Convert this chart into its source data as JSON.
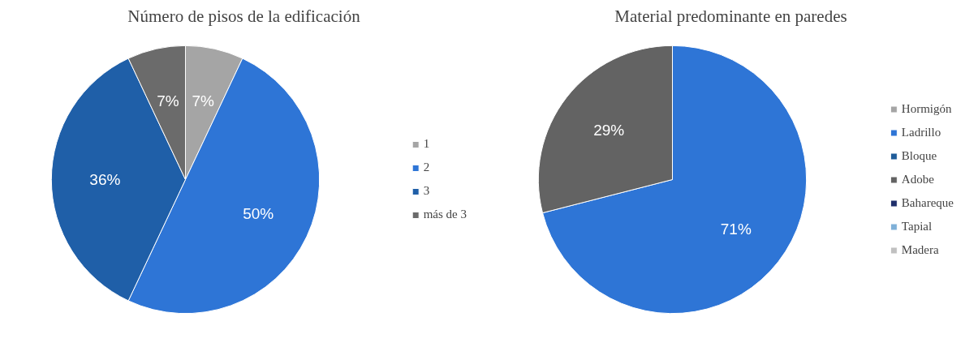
{
  "chart_data": [
    {
      "type": "pie",
      "title": "Número de pisos de la edificación",
      "categories": [
        "1",
        "2",
        "3",
        "más de 3"
      ],
      "values": [
        7,
        50,
        36,
        7
      ],
      "value_labels": [
        "7%",
        "50%",
        "36%",
        "7%"
      ],
      "colors": [
        "#a5a5a5",
        "#2e75d6",
        "#1f5fa8",
        "#6b6b6b"
      ],
      "legend": "right"
    },
    {
      "type": "pie",
      "title": "Material predominante en paredes",
      "categories": [
        "Hormigón",
        "Ladrillo",
        "Bloque",
        "Adobe",
        "Bahareque",
        "Tapial",
        "Madera"
      ],
      "values": [
        0,
        71,
        0,
        29,
        0,
        0,
        0
      ],
      "value_labels": [
        null,
        "71%",
        null,
        "29%",
        null,
        null,
        null
      ],
      "colors": [
        "#a5a5a5",
        "#2e75d6",
        "#1f5c99",
        "#636363",
        "#1f2f6b",
        "#7fb0d8",
        "#c0c0c0"
      ],
      "legend": "right"
    }
  ]
}
